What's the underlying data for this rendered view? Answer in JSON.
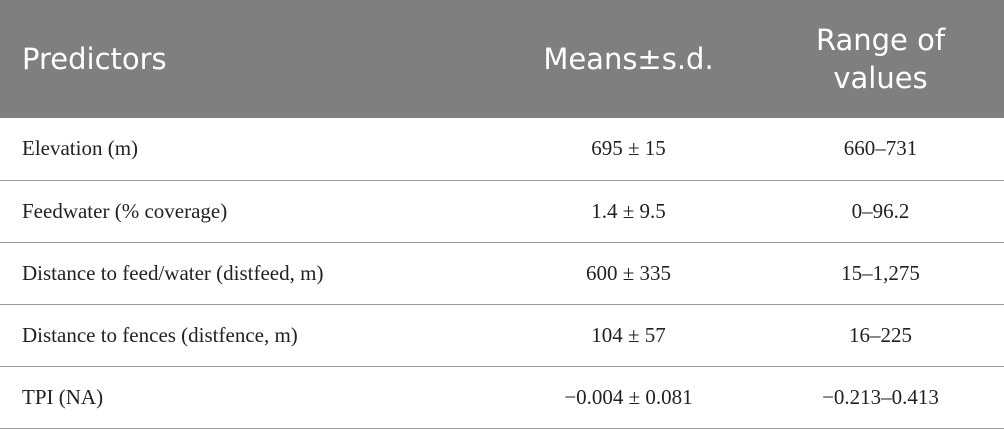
{
  "table": {
    "header": [
      "Predictors",
      "Means±s.d.",
      "Range of values"
    ],
    "rows": [
      [
        "Elevation (m)",
        "695 ± 15",
        "660–731"
      ],
      [
        "Feedwater (% coverage)",
        "1.4 ± 9.5",
        "0–96.2"
      ],
      [
        "Distance to feed/water (distfeed, m)",
        "600 ± 335",
        "15–1,275"
      ],
      [
        "Distance to fences (distfence, m)",
        "104 ± 57",
        "16–225"
      ],
      [
        "TPI (NA)",
        "−0.004 ± 0.081",
        "−0.213–0.413"
      ]
    ]
  }
}
